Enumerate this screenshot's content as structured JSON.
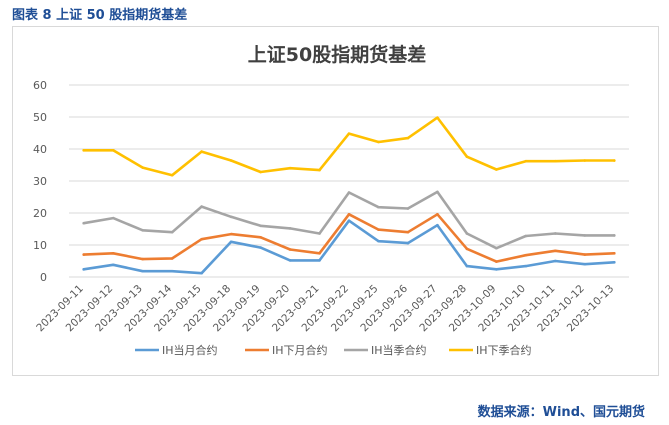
{
  "figure": {
    "caption": "图表 8  上证 50 股指期货基差",
    "source": "数据来源：Wind、国元期货"
  },
  "colors": {
    "series": [
      "#5b9bd5",
      "#ed7d31",
      "#a5a5a5",
      "#ffc000"
    ],
    "grid": "#d9d9d9",
    "axis_text": "#595959",
    "title": "#404040"
  },
  "chart_data": {
    "type": "line",
    "title": "上证50股指期货基差",
    "xlabel": "",
    "ylabel": "",
    "ylim": [
      0,
      60
    ],
    "yticks": [
      0,
      10,
      20,
      30,
      40,
      50,
      60
    ],
    "grid": true,
    "legend_position": "bottom",
    "categories": [
      "2023-09-11",
      "2023-09-12",
      "2023-09-13",
      "2023-09-14",
      "2023-09-15",
      "2023-09-18",
      "2023-09-19",
      "2023-09-20",
      "2023-09-21",
      "2023-09-22",
      "2023-09-25",
      "2023-09-26",
      "2023-09-27",
      "2023-09-28",
      "2023-10-09",
      "2023-10-10",
      "2023-10-11",
      "2023-10-12",
      "2023-10-13"
    ],
    "series": [
      {
        "name": "IH当月合约",
        "values": [
          2.4,
          3.8,
          1.8,
          1.8,
          1.2,
          11.0,
          9.2,
          5.2,
          5.2,
          17.6,
          11.2,
          10.6,
          16.2,
          3.4,
          2.4,
          3.4,
          5.0,
          4.0,
          4.6
        ]
      },
      {
        "name": "IH下月合约",
        "values": [
          7.0,
          7.4,
          5.6,
          5.8,
          11.8,
          13.4,
          12.4,
          8.6,
          7.4,
          19.6,
          14.8,
          14.0,
          19.6,
          8.8,
          4.8,
          6.8,
          8.2,
          7.0,
          7.4
        ]
      },
      {
        "name": "IH当季合约",
        "values": [
          16.8,
          18.4,
          14.6,
          14.0,
          22.0,
          18.8,
          16.0,
          15.2,
          13.6,
          26.4,
          21.8,
          21.4,
          26.6,
          13.6,
          9.0,
          12.8,
          13.6,
          13.0,
          13.0
        ]
      },
      {
        "name": "IH下季合约",
        "values": [
          39.6,
          39.6,
          34.2,
          31.8,
          39.2,
          36.4,
          32.8,
          34.0,
          33.4,
          44.8,
          42.2,
          43.4,
          49.8,
          37.6,
          33.6,
          36.2,
          36.2,
          36.4,
          36.4
        ]
      }
    ]
  }
}
